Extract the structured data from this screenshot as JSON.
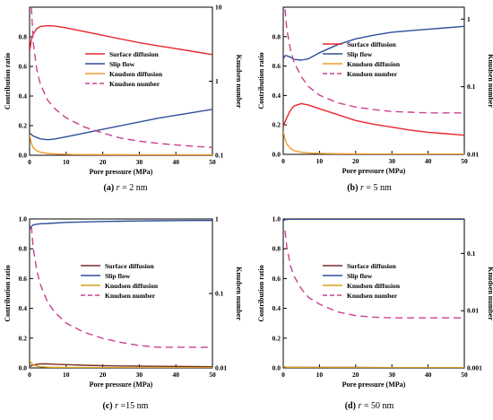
{
  "chart_data": [
    {
      "type": "line",
      "caption": {
        "letter": "(a)",
        "r": "r",
        "rest": " = 2 nm"
      },
      "xlabel": "Pore pressure (MPa)",
      "ylabel": "Contribution ratio",
      "y2label": "Knudsen number",
      "xlim": [
        0,
        50
      ],
      "ylim": [
        0,
        1.0
      ],
      "y2lim": [
        0.1,
        10
      ],
      "y2scale": "log",
      "xticks": [
        0,
        10,
        20,
        30,
        40,
        50
      ],
      "yticks": [
        0,
        0.2,
        0.4,
        0.6,
        0.8
      ],
      "y2ticks": [
        {
          "v": 0.1,
          "label": "0.1"
        },
        {
          "v": 1,
          "label": "1"
        },
        {
          "v": 10,
          "label": "10"
        }
      ],
      "legend": "top-right",
      "series": [
        {
          "name": "Surface diffusion",
          "color": "#e8262b",
          "dash": "",
          "axis": "left",
          "x": [
            0,
            0.5,
            1,
            2,
            3,
            5,
            7,
            10,
            15,
            20,
            25,
            30,
            35,
            40,
            45,
            50
          ],
          "y": [
            0.7,
            0.78,
            0.82,
            0.855,
            0.87,
            0.875,
            0.872,
            0.86,
            0.835,
            0.81,
            0.785,
            0.76,
            0.74,
            0.72,
            0.7,
            0.68
          ]
        },
        {
          "name": "Slip flow",
          "color": "#2f4e9c",
          "dash": "",
          "axis": "left",
          "x": [
            0,
            0.5,
            1,
            2,
            3,
            5,
            7,
            10,
            15,
            20,
            25,
            30,
            35,
            40,
            45,
            50
          ],
          "y": [
            0.15,
            0.14,
            0.13,
            0.12,
            0.11,
            0.105,
            0.11,
            0.125,
            0.15,
            0.175,
            0.2,
            0.225,
            0.25,
            0.27,
            0.29,
            0.31
          ]
        },
        {
          "name": "Knudsen diffusion",
          "color": "#f39c2c",
          "dash": "",
          "axis": "left",
          "x": [
            0,
            0.5,
            1,
            2,
            3,
            5,
            8,
            12,
            20,
            30,
            40,
            50
          ],
          "y": [
            0.14,
            0.08,
            0.05,
            0.03,
            0.02,
            0.012,
            0.008,
            0.005,
            0.004,
            0.003,
            0.003,
            0.003
          ]
        },
        {
          "name": "Knudsen number",
          "color": "#cc3f8f",
          "dash": "8,5",
          "axis": "right",
          "x": [
            0.5,
            1,
            2,
            3,
            5,
            7,
            10,
            15,
            20,
            25,
            30,
            35,
            40,
            45,
            50
          ],
          "y": [
            10,
            3.3,
            1.4,
            0.9,
            0.55,
            0.42,
            0.32,
            0.24,
            0.2,
            0.17,
            0.155,
            0.145,
            0.138,
            0.132,
            0.128
          ]
        }
      ]
    },
    {
      "type": "line",
      "caption": {
        "letter": "(b)",
        "r": "r",
        "rest": " = 5 nm"
      },
      "xlabel": "Pore pressure (MPa)",
      "ylabel": "Contribution ratio",
      "y2label": "Knudsen number",
      "xlim": [
        0,
        50
      ],
      "ylim": [
        0,
        1.0
      ],
      "y2lim": [
        0.01,
        1.5
      ],
      "y2scale": "log",
      "xticks": [
        0,
        10,
        20,
        30,
        40,
        50
      ],
      "yticks": [
        0,
        0.2,
        0.4,
        0.6,
        0.8
      ],
      "y2ticks": [
        {
          "v": 0.01,
          "label": "0.01"
        },
        {
          "v": 0.1,
          "label": "0.1"
        },
        {
          "v": 1,
          "label": "1"
        }
      ],
      "legend": "center-right",
      "series": [
        {
          "name": "Surface diffusion",
          "color": "#e8262b",
          "dash": "",
          "axis": "left",
          "x": [
            0,
            0.5,
            1,
            2,
            3,
            5,
            7,
            10,
            15,
            20,
            25,
            30,
            35,
            40,
            45,
            50
          ],
          "y": [
            0.19,
            0.22,
            0.25,
            0.3,
            0.33,
            0.345,
            0.335,
            0.31,
            0.27,
            0.23,
            0.205,
            0.185,
            0.165,
            0.15,
            0.14,
            0.13
          ]
        },
        {
          "name": "Slip flow",
          "color": "#2f4e9c",
          "dash": "",
          "axis": "left",
          "x": [
            0,
            0.5,
            1,
            2,
            3,
            5,
            7,
            10,
            15,
            20,
            25,
            30,
            35,
            40,
            45,
            50
          ],
          "y": [
            0.65,
            0.67,
            0.67,
            0.66,
            0.645,
            0.64,
            0.65,
            0.69,
            0.745,
            0.785,
            0.81,
            0.83,
            0.84,
            0.85,
            0.86,
            0.87
          ]
        },
        {
          "name": "Knudsen diffusion",
          "color": "#f39c2c",
          "dash": "",
          "axis": "left",
          "x": [
            0,
            0.5,
            1,
            2,
            3,
            5,
            8,
            12,
            20,
            30,
            40,
            50
          ],
          "y": [
            0.16,
            0.1,
            0.07,
            0.04,
            0.025,
            0.014,
            0.008,
            0.005,
            0.003,
            0.002,
            0.002,
            0.002
          ]
        },
        {
          "name": "Knudsen number",
          "color": "#cc3f8f",
          "dash": "8,5",
          "axis": "right",
          "x": [
            0.5,
            1,
            2,
            3,
            5,
            7,
            10,
            15,
            20,
            25,
            30,
            35,
            40,
            45,
            50
          ],
          "y": [
            1.4,
            0.7,
            0.35,
            0.23,
            0.14,
            0.1,
            0.075,
            0.058,
            0.05,
            0.046,
            0.043,
            0.042,
            0.041,
            0.041,
            0.041
          ]
        }
      ]
    },
    {
      "type": "line",
      "caption": {
        "letter": "(c)",
        "r": "r",
        "rest": " =15 nm"
      },
      "xlabel": "Pore pressure (MPa)",
      "ylabel": "Contribution ratio",
      "y2label": "Knudsen number",
      "xlim": [
        0,
        50
      ],
      "ylim": [
        0,
        1.0
      ],
      "y2lim": [
        0.01,
        1
      ],
      "y2scale": "log",
      "xticks": [
        0,
        10,
        20,
        30,
        40,
        50
      ],
      "yticks": [
        0,
        0.2,
        0.4,
        0.6,
        0.8,
        1.0
      ],
      "y2ticks": [
        {
          "v": 0.01,
          "label": "0.01"
        },
        {
          "v": 0.1,
          "label": "0.1"
        },
        {
          "v": 1,
          "label": "1"
        }
      ],
      "legend": "center-right",
      "series": [
        {
          "name": "Surface diffusion",
          "color": "#7a2a2a",
          "dash": "",
          "axis": "left",
          "x": [
            0,
            1,
            2,
            3,
            5,
            7,
            10,
            15,
            20,
            25,
            30,
            35,
            40,
            45,
            50
          ],
          "y": [
            0.01,
            0.02,
            0.025,
            0.028,
            0.027,
            0.025,
            0.022,
            0.018,
            0.015,
            0.013,
            0.012,
            0.011,
            0.01,
            0.009,
            0.008
          ]
        },
        {
          "name": "Slip flow",
          "color": "#2f4e9c",
          "dash": "",
          "axis": "left",
          "x": [
            0,
            0.5,
            1,
            2,
            3,
            5,
            7,
            10,
            15,
            20,
            25,
            30,
            35,
            40,
            45,
            50
          ],
          "y": [
            0.93,
            0.95,
            0.96,
            0.965,
            0.968,
            0.97,
            0.973,
            0.977,
            0.98,
            0.983,
            0.985,
            0.987,
            0.988,
            0.989,
            0.99,
            0.99
          ]
        },
        {
          "name": "Knudsen diffusion",
          "color": "#d4a017",
          "dash": "",
          "axis": "left",
          "x": [
            0,
            0.5,
            1,
            2,
            3,
            5,
            10,
            20,
            30,
            40,
            50
          ],
          "y": [
            0.05,
            0.03,
            0.02,
            0.012,
            0.008,
            0.005,
            0.003,
            0.002,
            0.001,
            0.001,
            0.001
          ]
        },
        {
          "name": "Knudsen number",
          "color": "#cc3f8f",
          "dash": "8,5",
          "axis": "right",
          "x": [
            0.5,
            1,
            2,
            3,
            5,
            7,
            10,
            15,
            20,
            25,
            30,
            35,
            40,
            45,
            50
          ],
          "y": [
            0.8,
            0.4,
            0.2,
            0.13,
            0.075,
            0.055,
            0.04,
            0.03,
            0.025,
            0.022,
            0.02,
            0.019,
            0.019,
            0.019,
            0.019
          ]
        }
      ]
    },
    {
      "type": "line",
      "caption": {
        "letter": "(d)",
        "r": "r",
        "rest": " = 50 nm"
      },
      "xlabel": "Pore pressure (MPa)",
      "ylabel": "Contribution ratio",
      "y2label": "Knudsen number",
      "xlim": [
        0,
        50
      ],
      "ylim": [
        0,
        1.0
      ],
      "y2lim": [
        0.001,
        0.4
      ],
      "y2scale": "log",
      "xticks": [
        0,
        10,
        20,
        30,
        40,
        50
      ],
      "yticks": [
        0,
        0.2,
        0.4,
        0.6,
        0.8,
        1.0
      ],
      "y2ticks": [
        {
          "v": 0.001,
          "label": "0.001"
        },
        {
          "v": 0.01,
          "label": "0.01"
        },
        {
          "v": 0.1,
          "label": "0.1"
        }
      ],
      "legend": "center-right",
      "series": [
        {
          "name": "Surface diffusion",
          "color": "#7a2a2a",
          "dash": "",
          "axis": "left",
          "x": [
            0,
            10,
            20,
            30,
            40,
            50
          ],
          "y": [
            0.004,
            0.003,
            0.003,
            0.002,
            0.002,
            0.002
          ]
        },
        {
          "name": "Slip flow",
          "color": "#2f4e9c",
          "dash": "",
          "axis": "left",
          "x": [
            0,
            0.5,
            1,
            2,
            5,
            10,
            20,
            30,
            40,
            50
          ],
          "y": [
            0.99,
            0.995,
            0.997,
            0.998,
            0.998,
            0.998,
            0.998,
            0.998,
            0.998,
            0.998
          ]
        },
        {
          "name": "Knudsen diffusion",
          "color": "#d4a017",
          "dash": "",
          "axis": "left",
          "x": [
            0,
            0.5,
            1,
            2,
            5,
            10,
            20,
            30,
            40,
            50
          ],
          "y": [
            0.012,
            0.007,
            0.005,
            0.003,
            0.002,
            0.001,
            0.001,
            0.001,
            0.001,
            0.001
          ]
        },
        {
          "name": "Knudsen number",
          "color": "#cc3f8f",
          "dash": "8,5",
          "axis": "right",
          "x": [
            0.5,
            1,
            2,
            3,
            5,
            7,
            10,
            15,
            20,
            25,
            30,
            35,
            40,
            45,
            50
          ],
          "y": [
            0.25,
            0.13,
            0.06,
            0.04,
            0.024,
            0.017,
            0.013,
            0.0095,
            0.0082,
            0.0077,
            0.0075,
            0.0075,
            0.0075,
            0.0075,
            0.0075
          ]
        }
      ]
    }
  ]
}
